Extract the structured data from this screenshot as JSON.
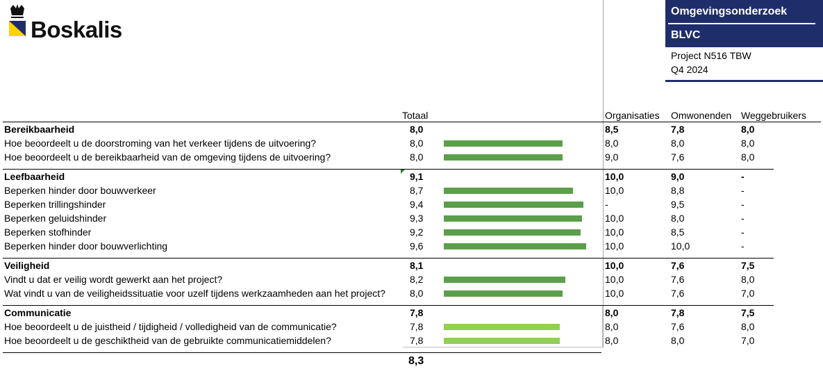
{
  "brand": {
    "name": "Boskalis"
  },
  "header": {
    "title": "Omgevingsonderzoek",
    "subtitle": "BLVC",
    "project": "Project N516 TBW",
    "period": "Q4 2024"
  },
  "columns": {
    "totaal": "Totaal",
    "organisaties": "Organisaties",
    "omwonenden": "Omwonenden",
    "weggebruikers": "Weggebruikers"
  },
  "colors": {
    "bar_dark": "#5b9f4a",
    "bar_light": "#92d050",
    "navy": "#1f2d6b"
  },
  "sections": [
    {
      "title": "Bereikbaarheid",
      "total": "8,0",
      "org": "8,5",
      "omw": "7,8",
      "weg": "8,0",
      "items": [
        {
          "label": "Hoe beoordeelt u de doorstroming van het verkeer tijdens de uitvoering?",
          "total": "8,0",
          "score": 8.0,
          "org": "8,0",
          "omw": "8,0",
          "weg": "8,0"
        },
        {
          "label": "Hoe beoordeelt u de bereikbaarheid van de omgeving tijdens de uitvoering?",
          "total": "8,0",
          "score": 8.0,
          "org": "9,0",
          "omw": "7,6",
          "weg": "8,0"
        }
      ]
    },
    {
      "title": "Leefbaarheid",
      "total": "9,1",
      "org": "10,0",
      "omw": "9,0",
      "weg": "-",
      "items": [
        {
          "label": "Beperken hinder door bouwverkeer",
          "total": "8,7",
          "score": 8.7,
          "org": "10,0",
          "omw": "8,8",
          "weg": "-"
        },
        {
          "label": "Beperken trillingshinder",
          "total": "9,4",
          "score": 9.4,
          "org": "-",
          "omw": "9,5",
          "weg": "-"
        },
        {
          "label": "Beperken geluidshinder",
          "total": "9,3",
          "score": 9.3,
          "org": "10,0",
          "omw": "8,0",
          "weg": "-"
        },
        {
          "label": "Beperken stofhinder",
          "total": "9,2",
          "score": 9.2,
          "org": "10,0",
          "omw": "8,5",
          "weg": "-"
        },
        {
          "label": "Beperken hinder door bouwverlichting",
          "total": "9,6",
          "score": 9.6,
          "org": "10,0",
          "omw": "10,0",
          "weg": "-"
        }
      ]
    },
    {
      "title": "Veiligheid",
      "total": "8,1",
      "org": "10,0",
      "omw": "7,6",
      "weg": "7,5",
      "items": [
        {
          "label": "Vindt u dat er veilig wordt gewerkt aan het project?",
          "total": "8,2",
          "score": 8.2,
          "org": "10,0",
          "omw": "7,6",
          "weg": "8,0"
        },
        {
          "label": "Wat vindt u van de veiligheidssituatie voor uzelf tijdens werkzaamheden aan het project?",
          "total": "8,0",
          "score": 8.0,
          "org": "10,0",
          "omw": "7,6",
          "weg": "7,0"
        }
      ]
    },
    {
      "title": "Communicatie",
      "total": "7,8",
      "org": "8,0",
      "omw": "7,8",
      "weg": "7,5",
      "items": [
        {
          "label": "Hoe beoordeelt u de juistheid / tijdigheid / volledigheid van de communicatie?",
          "total": "7,8",
          "score": 7.8,
          "org": "8,0",
          "omw": "7,6",
          "weg": "8,0"
        },
        {
          "label": "Hoe beoordeelt u de geschiktheid van de gebruikte communicatiemiddelen?",
          "total": "7,8",
          "score": 7.8,
          "org": "8,0",
          "omw": "8,0",
          "weg": "7,0"
        }
      ]
    }
  ],
  "grand_total": "8,3"
}
